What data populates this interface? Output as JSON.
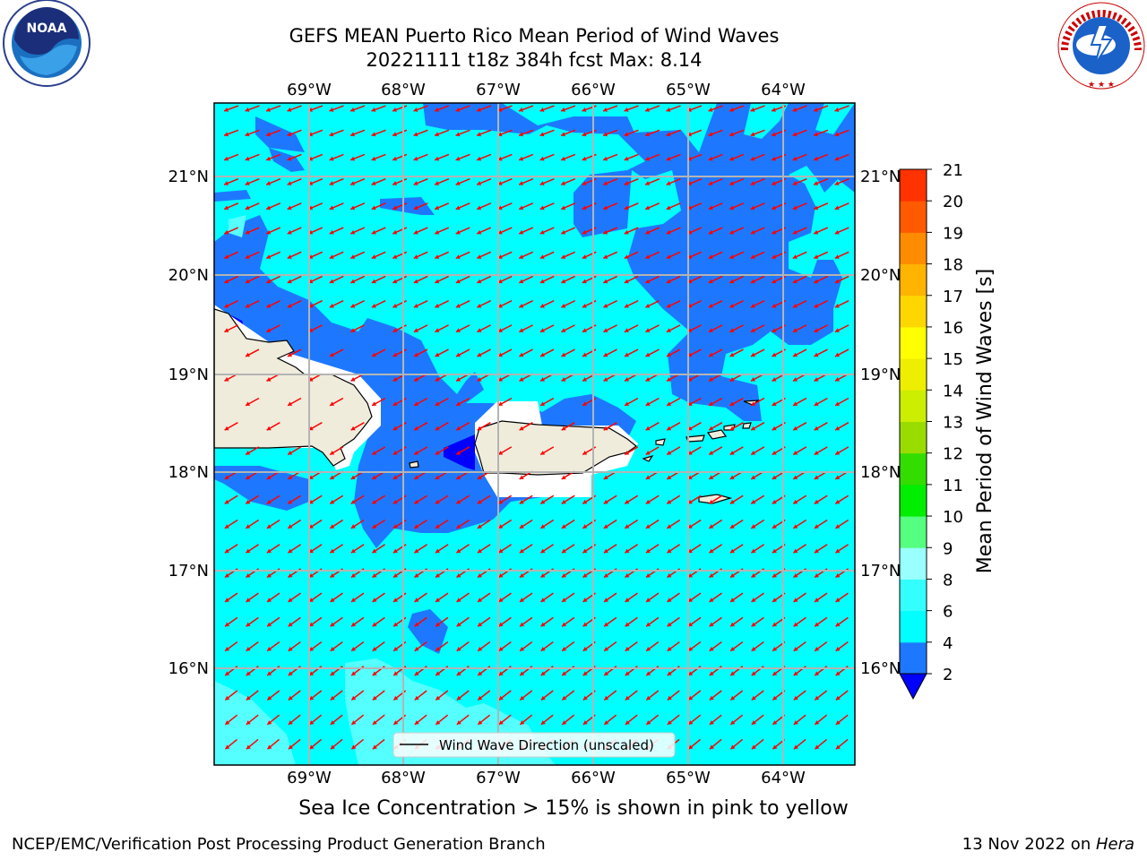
{
  "header": {
    "title_line1": "GEFS MEAN Puerto Rico Mean Period of Wind Waves",
    "title_line2": "20221111 t18z 384h fcst   Max: 8.14"
  },
  "logos": {
    "left": "NOAA",
    "right": "NATIONAL WEATHER SERVICE"
  },
  "map": {
    "lon_labels": [
      "69°W",
      "68°W",
      "67°W",
      "66°W",
      "65°W",
      "64°W"
    ],
    "lat_labels": [
      "21°N",
      "20°N",
      "19°N",
      "18°N",
      "17°N",
      "16°N"
    ],
    "legend_label": "Wind Wave Direction (unscaled)",
    "arrow_color": "#ff0000",
    "land_color": "#efecdc"
  },
  "colorbar": {
    "label": "Mean Period of Wind Waves [s]",
    "ticks": [
      "2",
      "4",
      "6",
      "8",
      "9",
      "10",
      "11",
      "12",
      "13",
      "14",
      "15",
      "16",
      "17",
      "18",
      "19",
      "20",
      "21"
    ],
    "colors": [
      "#1e78ff",
      "#00ffff",
      "#33ffff",
      "#99ffff",
      "#55ff80",
      "#00ee00",
      "#33dd00",
      "#99dd00",
      "#ccee00",
      "#eeee00",
      "#ffff00",
      "#ffd700",
      "#ffb400",
      "#ff8c00",
      "#ff5a00",
      "#ff3200",
      "#ff0000"
    ],
    "under_color": "#0000ff"
  },
  "footer": {
    "subtitle": "Sea Ice Concentration > 15% is shown in pink to yellow",
    "credit_left": "NCEP/EMC/Verification Post Processing Product Generation Branch",
    "credit_date": "13 Nov 2022 on ",
    "credit_host": "Hera"
  }
}
